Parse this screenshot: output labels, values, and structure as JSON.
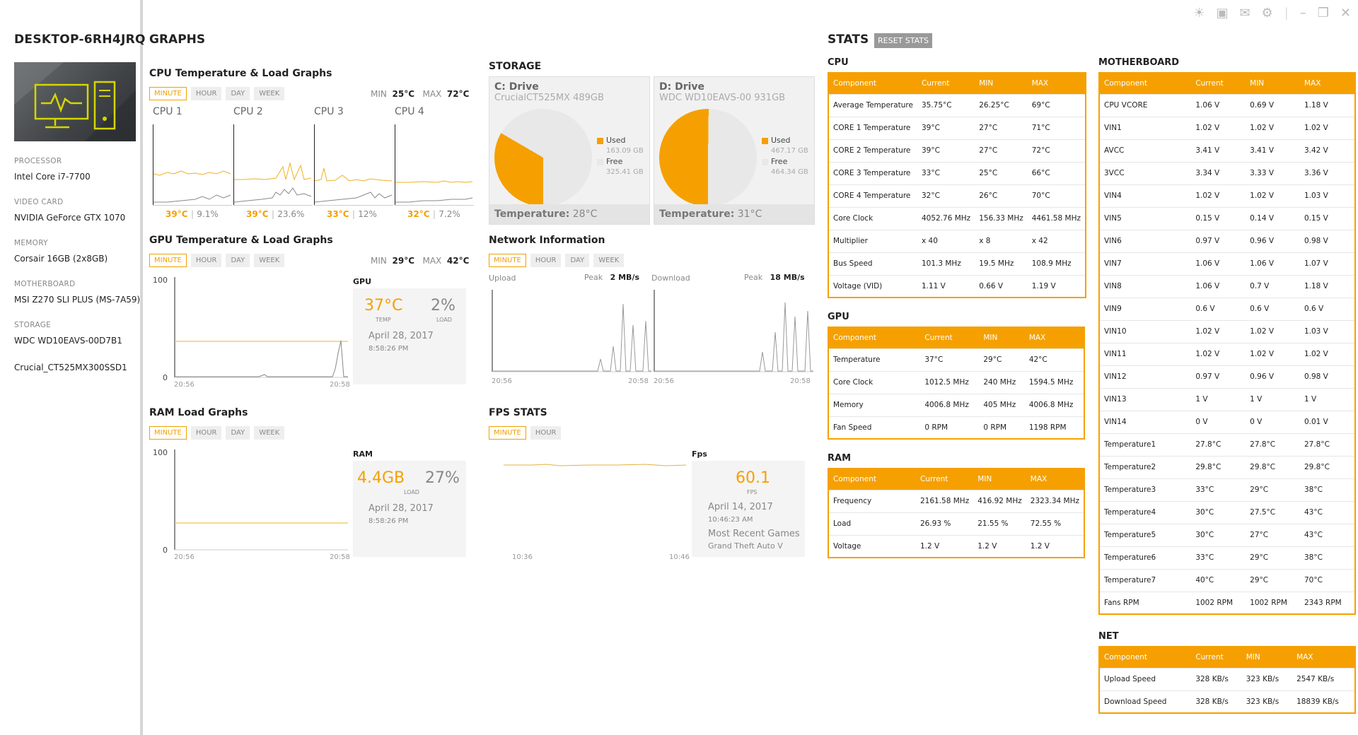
{
  "sidebar": {
    "hostname": "DESKTOP-6RH4JRQ",
    "processor_label": "PROCESSOR",
    "processor": "Intel Core i7-7700",
    "video_label": "VIDEO CARD",
    "video": "NVIDIA GeForce GTX 1070",
    "memory_label": "MEMORY",
    "memory": "Corsair 16GB (2x8GB)",
    "mobo_label": "MOTHERBOARD",
    "mobo": "MSI Z270 SLI PLUS (MS-7A59)",
    "storage_label": "STORAGE",
    "storage1": "WDC WD10EAVS-00D7B1",
    "storage2": "Crucial_CT525MX300SSD1"
  },
  "tabs": {
    "minute": "MINUTE",
    "hour": "HOUR",
    "day": "DAY",
    "week": "WEEK"
  },
  "graphs": {
    "title": "GRAPHS",
    "cpu": {
      "title": "CPU Temperature & Load Graphs",
      "min_label": "MIN",
      "min": "25°C",
      "max_label": "MAX",
      "max": "72°C",
      "cores": [
        {
          "label": "CPU 1",
          "temp": "39°C",
          "load": "9.1%"
        },
        {
          "label": "CPU 2",
          "temp": "39°C",
          "load": "23.6%"
        },
        {
          "label": "CPU 3",
          "temp": "33°C",
          "load": "12%"
        },
        {
          "label": "CPU 4",
          "temp": "32°C",
          "load": "7.2%"
        }
      ]
    },
    "gpu": {
      "title": "GPU Temperature & Load Graphs",
      "min_label": "MIN",
      "min": "29°C",
      "max_label": "MAX",
      "max": "42°C",
      "y_top": "100",
      "y_bottom": "0",
      "x_start": "20:56",
      "x_end": "20:58",
      "card_label": "GPU",
      "temp": "37°C",
      "temp_label": "TEMP",
      "load": "2%",
      "load_label": "LOAD",
      "date": "April 28, 2017",
      "time": "8:58:26 PM"
    },
    "ram": {
      "title": "RAM Load Graphs",
      "y_top": "100",
      "y_bottom": "0",
      "x_start": "20:56",
      "x_end": "20:58",
      "card_label": "RAM",
      "used": "4.4GB",
      "load": "27%",
      "load_label": "LOAD",
      "date": "April 28, 2017",
      "time": "8:58:26 PM"
    }
  },
  "storage": {
    "title": "STORAGE",
    "c": {
      "title": "C: Drive",
      "model": "CrucialCT525MX 489GB",
      "used_label": "Used",
      "used": "163.09 GB",
      "free_label": "Free",
      "free": "325.41 GB",
      "temp_label": "Temperature:",
      "temp": "28°C",
      "used_frac": 0.334
    },
    "d": {
      "title": "D: Drive",
      "model": "WDC WD10EAVS-00 931GB",
      "used_label": "Used",
      "used": "467.17 GB",
      "free_label": "Free",
      "free": "464.34 GB",
      "temp_label": "Temperature:",
      "temp": "31°C",
      "used_frac": 0.502
    }
  },
  "network": {
    "title": "Network Information",
    "upload_label": "Upload",
    "peak_label": "Peak",
    "upload_peak": "2 MB/s",
    "download_label": "Download",
    "download_peak": "18 MB/s",
    "x_start": "20:56",
    "x_end": "20:58",
    "x_start2": "20:56",
    "x_end2": "20:58"
  },
  "fps": {
    "title": "FPS STATS",
    "card_label": "Fps",
    "value": "60.1",
    "value_label": "FPS",
    "date": "April 14, 2017",
    "time": "10:46:23 AM",
    "recent_label": "Most Recent Games",
    "recent_game": "Grand Theft Auto V",
    "x_start": "10:36",
    "x_end": "10:46"
  },
  "stats": {
    "title": "STATS",
    "reset": "RESET STATS",
    "headers": [
      "Component",
      "Current",
      "MIN",
      "MAX"
    ],
    "cpu": {
      "title": "CPU",
      "rows": [
        [
          "Average Temperature",
          "35.75°C",
          "26.25°C",
          "69°C"
        ],
        [
          "CORE 1 Temperature",
          "39°C",
          "27°C",
          "71°C"
        ],
        [
          "CORE 2 Temperature",
          "39°C",
          "27°C",
          "72°C"
        ],
        [
          "CORE 3 Temperature",
          "33°C",
          "25°C",
          "66°C"
        ],
        [
          "CORE 4 Temperature",
          "32°C",
          "26°C",
          "70°C"
        ],
        [
          "Core Clock",
          "4052.76 MHz",
          "156.33 MHz",
          "4461.58 MHz"
        ],
        [
          "Multiplier",
          "x 40",
          "x 8",
          "x 42"
        ],
        [
          "Bus Speed",
          "101.3 MHz",
          "19.5 MHz",
          "108.9 MHz"
        ],
        [
          "Voltage (VID)",
          "1.11 V",
          "0.66 V",
          "1.19 V"
        ]
      ]
    },
    "gpu": {
      "title": "GPU",
      "rows": [
        [
          "Temperature",
          "37°C",
          "29°C",
          "42°C"
        ],
        [
          "Core Clock",
          "1012.5 MHz",
          "240 MHz",
          "1594.5 MHz"
        ],
        [
          "Memory",
          "4006.8 MHz",
          "405 MHz",
          "4006.8 MHz"
        ],
        [
          "Fan Speed",
          "0 RPM",
          "0 RPM",
          "1198 RPM"
        ]
      ]
    },
    "ram": {
      "title": "RAM",
      "rows": [
        [
          "Frequency",
          "2161.58 MHz",
          "416.92 MHz",
          "2323.34 MHz"
        ],
        [
          "Load",
          "26.93 %",
          "21.55 %",
          "72.55 %"
        ],
        [
          "Voltage",
          "1.2 V",
          "1.2 V",
          "1.2 V"
        ]
      ]
    },
    "mobo": {
      "title": "MOTHERBOARD",
      "rows": [
        [
          "CPU VCORE",
          "1.06 V",
          "0.69 V",
          "1.18 V"
        ],
        [
          "VIN1",
          "1.02 V",
          "1.02 V",
          "1.02 V"
        ],
        [
          "AVCC",
          "3.41 V",
          "3.41 V",
          "3.42 V"
        ],
        [
          "3VCC",
          "3.34 V",
          "3.33 V",
          "3.36 V"
        ],
        [
          "VIN4",
          "1.02 V",
          "1.02 V",
          "1.03 V"
        ],
        [
          "VIN5",
          "0.15 V",
          "0.14 V",
          "0.15 V"
        ],
        [
          "VIN6",
          "0.97 V",
          "0.96 V",
          "0.98 V"
        ],
        [
          "VIN7",
          "1.06 V",
          "1.06 V",
          "1.07 V"
        ],
        [
          "VIN8",
          "1.06 V",
          "0.7 V",
          "1.18 V"
        ],
        [
          "VIN9",
          "0.6 V",
          "0.6 V",
          "0.6 V"
        ],
        [
          "VIN10",
          "1.02 V",
          "1.02 V",
          "1.03 V"
        ],
        [
          "VIN11",
          "1.02 V",
          "1.02 V",
          "1.02 V"
        ],
        [
          "VIN12",
          "0.97 V",
          "0.96 V",
          "0.98 V"
        ],
        [
          "VIN13",
          "1 V",
          "1 V",
          "1 V"
        ],
        [
          "VIN14",
          "0 V",
          "0 V",
          "0.01 V"
        ],
        [
          "Temperature1",
          "27.8°C",
          "27.8°C",
          "27.8°C"
        ],
        [
          "Temperature2",
          "29.8°C",
          "29.8°C",
          "29.8°C"
        ],
        [
          "Temperature3",
          "33°C",
          "29°C",
          "38°C"
        ],
        [
          "Temperature4",
          "30°C",
          "27.5°C",
          "43°C"
        ],
        [
          "Temperature5",
          "30°C",
          "27°C",
          "43°C"
        ],
        [
          "Temperature6",
          "33°C",
          "29°C",
          "38°C"
        ],
        [
          "Temperature7",
          "40°C",
          "29°C",
          "70°C"
        ],
        [
          "Fans RPM",
          "1002 RPM",
          "1002 RPM",
          "2343 RPM"
        ]
      ]
    },
    "net": {
      "title": "NET",
      "rows": [
        [
          "Upload Speed",
          "328 KB/s",
          "323 KB/s",
          "2547 KB/s"
        ],
        [
          "Download Speed",
          "328 KB/s",
          "323 KB/s",
          "18839 KB/s"
        ]
      ]
    }
  },
  "colors": {
    "accent": "#f5a000",
    "pie_free": "#e8e8e8"
  }
}
